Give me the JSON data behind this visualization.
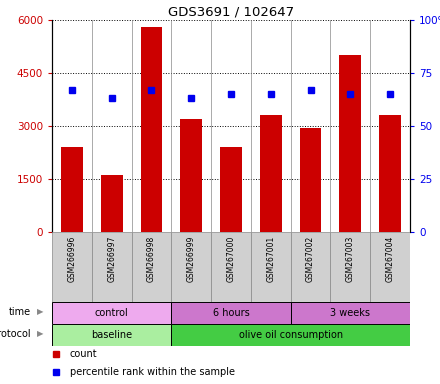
{
  "title": "GDS3691 / 102647",
  "samples": [
    "GSM266996",
    "GSM266997",
    "GSM266998",
    "GSM266999",
    "GSM267000",
    "GSM267001",
    "GSM267002",
    "GSM267003",
    "GSM267004"
  ],
  "counts": [
    2400,
    1600,
    5800,
    3200,
    2400,
    3300,
    2950,
    5000,
    3300
  ],
  "percentile_ranks": [
    67,
    63,
    67,
    63,
    65,
    65,
    67,
    65,
    65
  ],
  "count_color": "#cc0000",
  "percentile_color": "#0000ee",
  "ylim_left": [
    0,
    6000
  ],
  "ylim_right": [
    0,
    100
  ],
  "yticks_left": [
    0,
    1500,
    3000,
    4500,
    6000
  ],
  "ytick_labels_left": [
    "0",
    "1500",
    "3000",
    "4500",
    "6000"
  ],
  "yticks_right": [
    0,
    25,
    50,
    75,
    100
  ],
  "ytick_labels_right": [
    "0",
    "25",
    "50",
    "75",
    "100%"
  ],
  "protocol_groups": [
    {
      "label": "baseline",
      "start": 0,
      "end": 3,
      "color": "#aaeea0"
    },
    {
      "label": "olive oil consumption",
      "start": 3,
      "end": 9,
      "color": "#44cc44"
    }
  ],
  "time_groups": [
    {
      "label": "control",
      "start": 0,
      "end": 3,
      "color": "#eeaaee"
    },
    {
      "label": "6 hours",
      "start": 3,
      "end": 6,
      "color": "#cc77cc"
    },
    {
      "label": "3 weeks",
      "start": 6,
      "end": 9,
      "color": "#cc77cc"
    }
  ],
  "legend_count_label": "count",
  "legend_percentile_label": "percentile rank within the sample",
  "sample_box_color": "#d0d0d0"
}
